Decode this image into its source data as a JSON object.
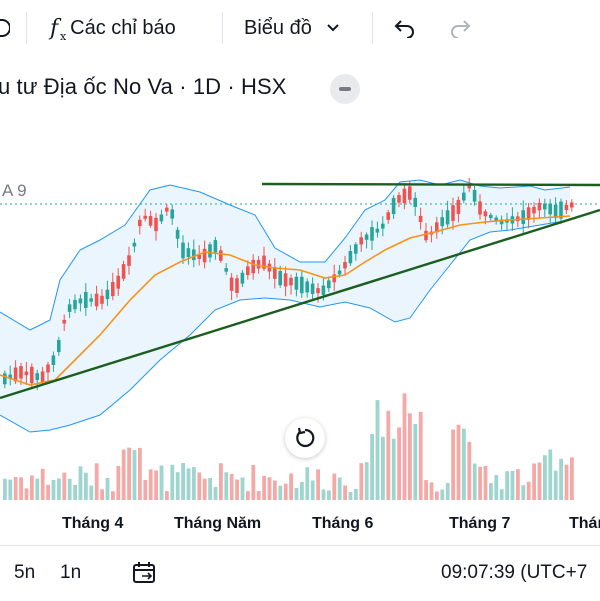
{
  "toolbar": {
    "indicators_label": "Các chỉ báo",
    "chart_type_label": "Biểu đồ",
    "icons": [
      "partial-icon",
      "function-icon",
      "chevron-down-icon",
      "undo-icon",
      "redo-icon"
    ]
  },
  "symbol": {
    "title": "u tư Địa ốc No Va · 1D · HSX"
  },
  "indicator": {
    "label": "A 9"
  },
  "colors": {
    "up": "#26a69a",
    "down": "#ef5350",
    "volume_up": "#9ed6cf",
    "volume_down": "#f4a9a7",
    "ma": "#f7931a",
    "band_line": "#2196f3",
    "band_fill": "#e3f2fd",
    "trendline": "#1b5e20"
  },
  "chart_data": {
    "type": "candlestick",
    "x_tick_labels": [
      "Tháng 4",
      "Tháng Năm",
      "Tháng 6",
      "Tháng 7",
      "Thán"
    ],
    "indicators": [
      "Bollinger Bands",
      "moving average",
      "volume"
    ],
    "drawings": [
      "horizontal resistance line",
      "rising support trendline"
    ],
    "grid": false
  },
  "bottom": {
    "range_5n": "5n",
    "range_1n": "1n",
    "time": "09:07:39 (UTC+7"
  }
}
